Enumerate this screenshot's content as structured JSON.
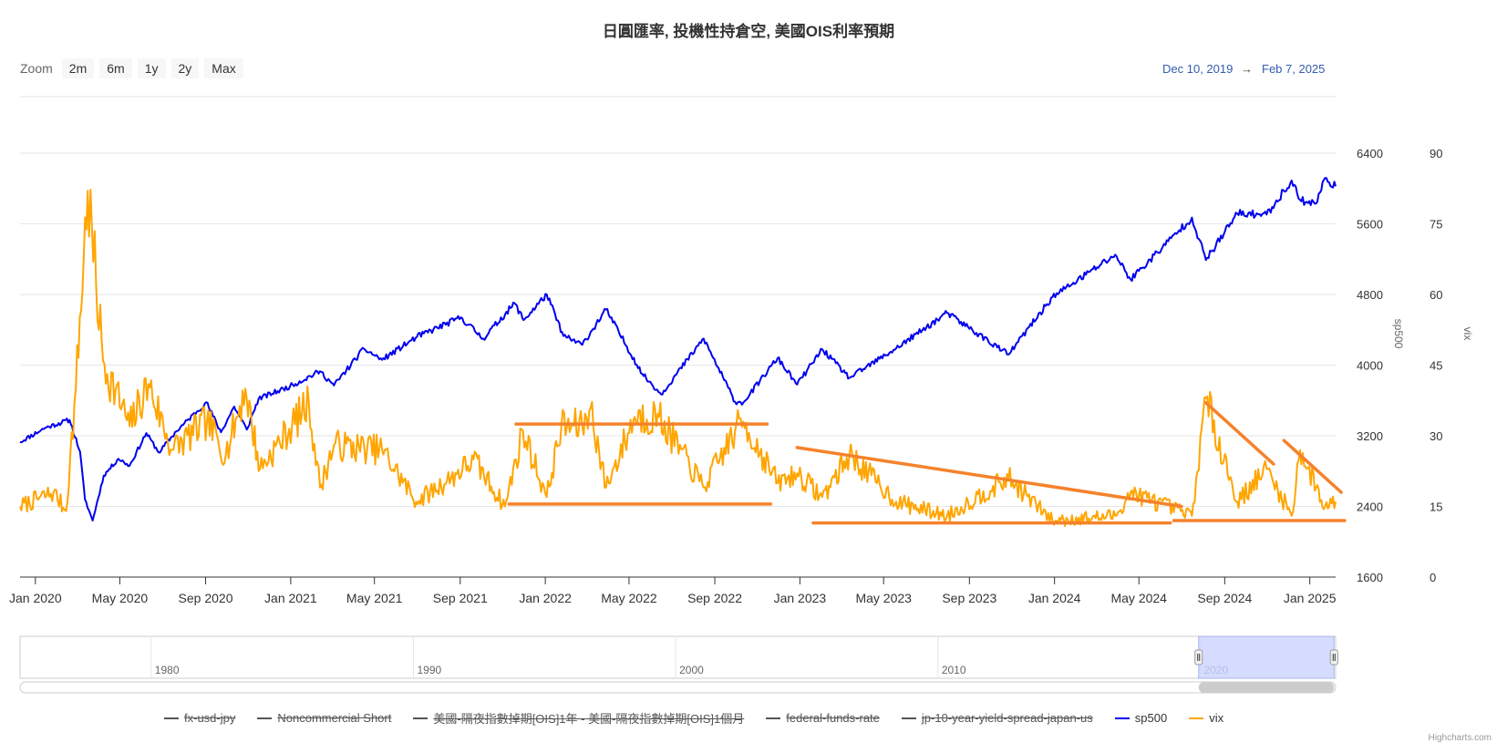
{
  "title": "日圓匯率, 投機性持倉空, 美國OIS利率預期",
  "zoom": {
    "label": "Zoom",
    "buttons": [
      "2m",
      "6m",
      "1y",
      "2y",
      "Max"
    ]
  },
  "range": {
    "from": "Dec 10, 2019",
    "arrow": "→",
    "to": "Feb 7, 2025"
  },
  "credits": "Highcharts.com",
  "colors": {
    "sp500": "#0000ee",
    "vix": "#ffa500",
    "trend": "#f5822b",
    "navigator": "#ccd3ff",
    "grid": "#e6e6e6"
  },
  "legend": [
    {
      "label": "fx-usd-jpy",
      "hidden": true,
      "color": "#555555"
    },
    {
      "label": "Noncommercial Short",
      "hidden": true,
      "color": "#555555"
    },
    {
      "label": "美國-隔夜指數掉期[OIS]1年 - 美國-隔夜指數掉期[OIS]1個月",
      "hidden": true,
      "color": "#555555"
    },
    {
      "label": "federal-funds-rate",
      "hidden": true,
      "color": "#555555"
    },
    {
      "label": "jp-10-year-yield-spread-japan-us",
      "hidden": true,
      "color": "#555555"
    },
    {
      "label": "sp500",
      "hidden": false,
      "color": "#0000ee"
    },
    {
      "label": "vix",
      "hidden": false,
      "color": "#ffa500"
    }
  ],
  "chart_data": {
    "type": "line",
    "x_range": [
      "2019-12-10",
      "2025-02-07"
    ],
    "x_ticks": [
      "Jan 2020",
      "May 2020",
      "Sep 2020",
      "Jan 2021",
      "May 2021",
      "Sep 2021",
      "Jan 2022",
      "May 2022",
      "Sep 2022",
      "Jan 2023",
      "May 2023",
      "Sep 2023",
      "Jan 2024",
      "May 2024",
      "Sep 2024",
      "Jan 2025"
    ],
    "y_axes": [
      {
        "name": "sp500",
        "label": "sp500",
        "ylim": [
          1600,
          6400
        ],
        "ticks": [
          "6400",
          "5600",
          "4800",
          "4000",
          "3200",
          "2400",
          "1600"
        ]
      },
      {
        "name": "vix",
        "label": "vix",
        "ylim": [
          0,
          90
        ],
        "ticks": [
          "90",
          "75",
          "60",
          "45",
          "30",
          "15",
          "0"
        ]
      }
    ],
    "grid": true,
    "legend_position": "bottom",
    "series": [
      {
        "name": "sp500",
        "axis": "sp500",
        "points": [
          [
            "2019-12-10",
            3130
          ],
          [
            "2020-01-15",
            3290
          ],
          [
            "2020-02-19",
            3380
          ],
          [
            "2020-03-05",
            3020
          ],
          [
            "2020-03-12",
            2480
          ],
          [
            "2020-03-23",
            2240
          ],
          [
            "2020-04-08",
            2750
          ],
          [
            "2020-04-29",
            2940
          ],
          [
            "2020-05-15",
            2860
          ],
          [
            "2020-06-08",
            3230
          ],
          [
            "2020-06-26",
            3010
          ],
          [
            "2020-07-21",
            3250
          ],
          [
            "2020-09-02",
            3580
          ],
          [
            "2020-09-23",
            3240
          ],
          [
            "2020-10-12",
            3530
          ],
          [
            "2020-10-30",
            3270
          ],
          [
            "2020-11-16",
            3620
          ],
          [
            "2020-12-31",
            3760
          ],
          [
            "2021-02-12",
            3930
          ],
          [
            "2021-03-04",
            3770
          ],
          [
            "2021-04-16",
            4185
          ],
          [
            "2021-05-12",
            4060
          ],
          [
            "2021-07-01",
            4320
          ],
          [
            "2021-09-02",
            4540
          ],
          [
            "2021-10-04",
            4300
          ],
          [
            "2021-11-18",
            4700
          ],
          [
            "2021-12-01",
            4510
          ],
          [
            "2022-01-03",
            4800
          ],
          [
            "2022-01-27",
            4330
          ],
          [
            "2022-02-23",
            4230
          ],
          [
            "2022-03-29",
            4630
          ],
          [
            "2022-05-20",
            3900
          ],
          [
            "2022-06-16",
            3670
          ],
          [
            "2022-08-16",
            4300
          ],
          [
            "2022-09-30",
            3585
          ],
          [
            "2022-10-12",
            3577
          ],
          [
            "2022-11-30",
            4080
          ],
          [
            "2022-12-28",
            3780
          ],
          [
            "2023-02-02",
            4180
          ],
          [
            "2023-03-13",
            3855
          ],
          [
            "2023-05-19",
            4190
          ],
          [
            "2023-07-31",
            4590
          ],
          [
            "2023-10-27",
            4120
          ],
          [
            "2023-12-29",
            4770
          ],
          [
            "2024-03-28",
            5250
          ],
          [
            "2024-04-19",
            4970
          ],
          [
            "2024-07-16",
            5670
          ],
          [
            "2024-08-05",
            5190
          ],
          [
            "2024-09-19",
            5715
          ],
          [
            "2024-10-31",
            5705
          ],
          [
            "2024-12-06",
            6090
          ],
          [
            "2024-12-18",
            5870
          ],
          [
            "2025-01-10",
            5830
          ],
          [
            "2025-01-23",
            6120
          ],
          [
            "2025-02-07",
            6025
          ]
        ]
      },
      {
        "name": "vix",
        "axis": "vix",
        "points": [
          [
            "2019-12-10",
            15
          ],
          [
            "2020-01-27",
            18
          ],
          [
            "2020-02-14",
            14
          ],
          [
            "2020-02-28",
            40
          ],
          [
            "2020-03-16",
            82
          ],
          [
            "2020-04-07",
            46
          ],
          [
            "2020-05-15",
            32
          ],
          [
            "2020-06-11",
            41
          ],
          [
            "2020-07-15",
            27
          ],
          [
            "2020-09-03",
            33
          ],
          [
            "2020-09-30",
            26
          ],
          [
            "2020-10-28",
            40
          ],
          [
            "2020-11-18",
            23
          ],
          [
            "2021-01-27",
            37
          ],
          [
            "2021-02-12",
            19
          ],
          [
            "2021-03-04",
            28
          ],
          [
            "2021-05-12",
            27
          ],
          [
            "2021-06-30",
            16
          ],
          [
            "2021-08-19",
            21
          ],
          [
            "2021-09-20",
            25
          ],
          [
            "2021-11-04",
            15
          ],
          [
            "2021-11-30",
            31
          ],
          [
            "2022-01-03",
            17
          ],
          [
            "2022-01-24",
            32
          ],
          [
            "2022-02-23",
            32
          ],
          [
            "2022-03-07",
            36
          ],
          [
            "2022-03-29",
            19
          ],
          [
            "2022-05-09",
            34
          ],
          [
            "2022-06-13",
            34
          ],
          [
            "2022-08-16",
            19
          ],
          [
            "2022-09-30",
            31
          ],
          [
            "2022-10-12",
            33
          ],
          [
            "2022-11-30",
            20
          ],
          [
            "2022-12-28",
            22
          ],
          [
            "2023-02-02",
            17
          ],
          [
            "2023-03-13",
            26
          ],
          [
            "2023-05-19",
            16
          ],
          [
            "2023-07-31",
            13
          ],
          [
            "2023-10-27",
            21
          ],
          [
            "2023-12-29",
            12
          ],
          [
            "2024-03-28",
            13
          ],
          [
            "2024-04-19",
            18
          ],
          [
            "2024-07-16",
            13
          ],
          [
            "2024-08-05",
            38
          ],
          [
            "2024-09-19",
            16
          ],
          [
            "2024-10-31",
            23
          ],
          [
            "2024-12-06",
            13
          ],
          [
            "2024-12-18",
            27
          ],
          [
            "2025-01-10",
            19
          ],
          [
            "2025-01-23",
            15
          ],
          [
            "2025-02-07",
            16
          ]
        ]
      }
    ],
    "annotations": [
      {
        "kind": "trendline",
        "from": [
          "2021-11-20",
          32.5
        ],
        "to": [
          "2022-11-15",
          32.5
        ]
      },
      {
        "kind": "trendline",
        "from": [
          "2021-11-10",
          15.5
        ],
        "to": [
          "2022-11-20",
          15.5
        ]
      },
      {
        "kind": "trendline",
        "from": [
          "2022-12-28",
          27.5
        ],
        "to": [
          "2024-07-01",
          15
        ]
      },
      {
        "kind": "trendline",
        "from": [
          "2023-01-20",
          11.5
        ],
        "to": [
          "2024-06-15",
          11.5
        ]
      },
      {
        "kind": "trendline",
        "from": [
          "2024-06-20",
          12
        ],
        "to": [
          "2025-02-20",
          12
        ]
      },
      {
        "kind": "trendline",
        "from": [
          "2024-08-05",
          37
        ],
        "to": [
          "2024-11-10",
          24
        ]
      },
      {
        "kind": "trendline",
        "from": [
          "2024-11-25",
          29
        ],
        "to": [
          "2025-02-15",
          18
        ]
      }
    ],
    "navigator": {
      "ticks": [
        "1980",
        "1990",
        "2000",
        "2010",
        "2020"
      ],
      "range": [
        "1975",
        "2025"
      ],
      "selection": [
        "2019-12-10",
        "2025-02-07"
      ]
    }
  }
}
